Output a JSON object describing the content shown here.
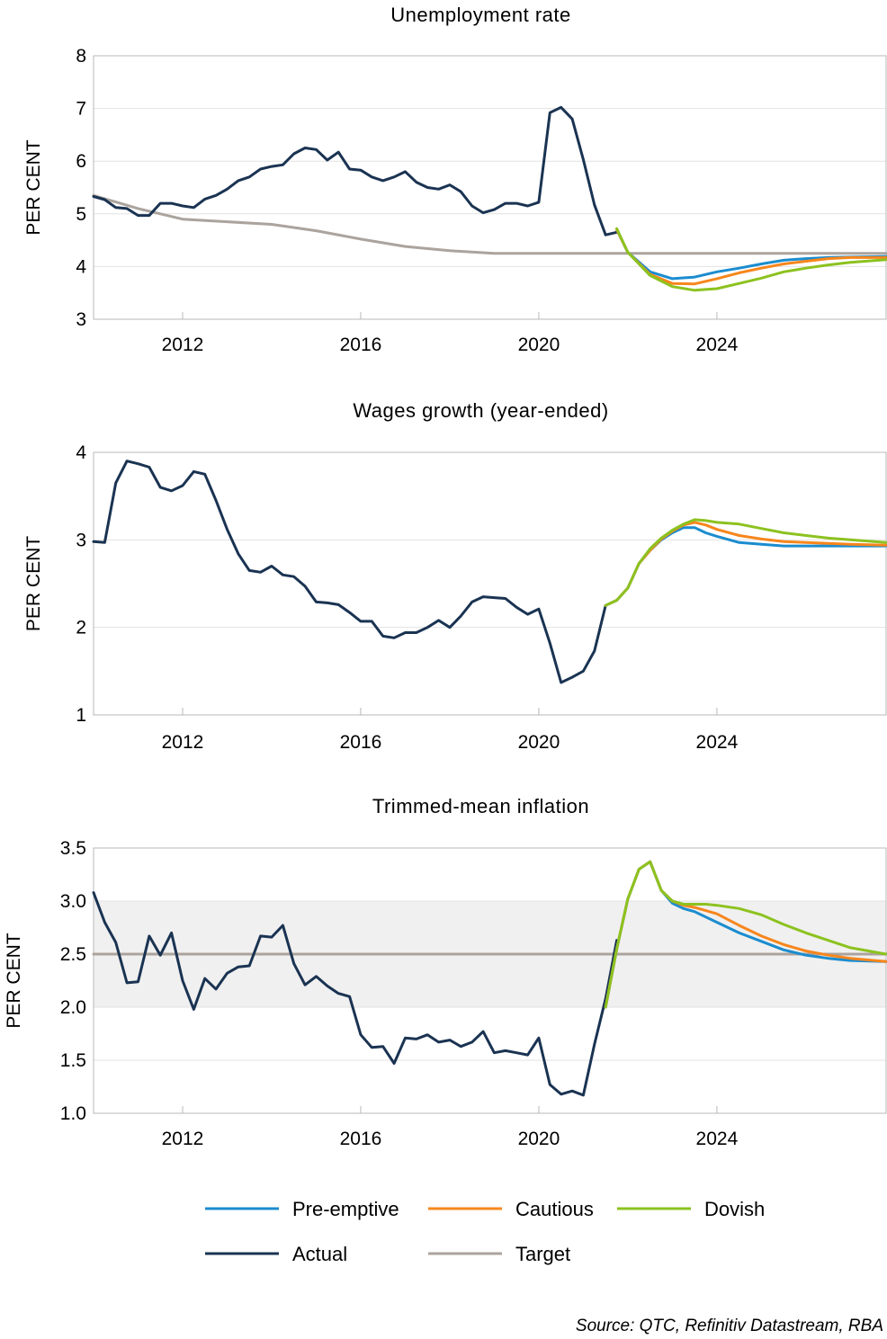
{
  "colors": {
    "pre_emptive": "#1b8ccf",
    "cautious": "#f7861c",
    "dovish": "#8cc21f",
    "actual": "#1a3352",
    "target": "#aba39d",
    "band": "#f0f0f0",
    "grid": "#e2e2e2",
    "frame": "#b8b8b8"
  },
  "legend": [
    {
      "key": "pre_emptive",
      "label": "Pre-emptive"
    },
    {
      "key": "cautious",
      "label": "Cautious"
    },
    {
      "key": "dovish",
      "label": "Dovish"
    },
    {
      "key": "actual",
      "label": "Actual"
    },
    {
      "key": "target",
      "label": "Target"
    }
  ],
  "source": "Source: QTC, Refinitiv Datastream, RBA",
  "chart_data": [
    {
      "type": "line",
      "title": "Unemployment rate",
      "ylabel": "PER CENT",
      "xlim": [
        2010,
        2027.8
      ],
      "ylim": [
        3,
        8
      ],
      "yticks": [
        "3",
        "4",
        "5",
        "6",
        "7",
        "8"
      ],
      "xticks": [
        "2012",
        "2016",
        "2020",
        "2024"
      ],
      "grid": true,
      "series": [
        {
          "key": "target",
          "name": "Target",
          "x": [
            2010,
            2011,
            2012,
            2013,
            2014,
            2015,
            2016,
            2017,
            2018,
            2019,
            2020,
            2027.8
          ],
          "y": [
            5.35,
            5.1,
            4.9,
            4.85,
            4.8,
            4.68,
            4.52,
            4.38,
            4.3,
            4.25,
            4.25,
            4.25
          ]
        },
        {
          "key": "actual",
          "name": "Actual",
          "x": [
            2010,
            2010.25,
            2010.5,
            2010.75,
            2011,
            2011.25,
            2011.5,
            2011.75,
            2012,
            2012.25,
            2012.5,
            2012.75,
            2013,
            2013.25,
            2013.5,
            2013.75,
            2014,
            2014.25,
            2014.5,
            2014.75,
            2015,
            2015.25,
            2015.5,
            2015.75,
            2016,
            2016.25,
            2016.5,
            2016.75,
            2017,
            2017.25,
            2017.5,
            2017.75,
            2018,
            2018.25,
            2018.5,
            2018.75,
            2019,
            2019.25,
            2019.5,
            2019.75,
            2020,
            2020.25,
            2020.5,
            2020.75,
            2021,
            2021.25,
            2021.5,
            2021.75
          ],
          "y": [
            5.33,
            5.27,
            5.12,
            5.1,
            4.97,
            4.97,
            5.2,
            5.2,
            5.15,
            5.12,
            5.28,
            5.35,
            5.47,
            5.63,
            5.7,
            5.85,
            5.9,
            5.93,
            6.14,
            6.25,
            6.22,
            6.02,
            6.17,
            5.85,
            5.83,
            5.7,
            5.63,
            5.7,
            5.8,
            5.6,
            5.5,
            5.47,
            5.55,
            5.42,
            5.15,
            5.02,
            5.08,
            5.2,
            5.2,
            5.15,
            5.22,
            6.92,
            7.02,
            6.8,
            6.03,
            5.17,
            4.6,
            4.65
          ]
        },
        {
          "key": "pre_emptive",
          "name": "Pre-emptive",
          "x": [
            2021.75,
            2022,
            2022.5,
            2023,
            2023.5,
            2024,
            2024.5,
            2025,
            2025.5,
            2026,
            2026.5,
            2027,
            2027.8
          ],
          "y": [
            4.7,
            4.27,
            3.9,
            3.77,
            3.8,
            3.9,
            3.97,
            4.05,
            4.12,
            4.15,
            4.17,
            4.18,
            4.19
          ]
        },
        {
          "key": "cautious",
          "name": "Cautious",
          "x": [
            2021.75,
            2022,
            2022.5,
            2023,
            2023.5,
            2024,
            2024.5,
            2025,
            2025.5,
            2026,
            2026.5,
            2027,
            2027.8
          ],
          "y": [
            4.7,
            4.27,
            3.85,
            3.68,
            3.67,
            3.77,
            3.88,
            3.97,
            4.05,
            4.1,
            4.15,
            4.17,
            4.17
          ]
        },
        {
          "key": "dovish",
          "name": "Dovish",
          "x": [
            2021.75,
            2022,
            2022.5,
            2023,
            2023.5,
            2024,
            2024.5,
            2025,
            2025.5,
            2026,
            2026.5,
            2027,
            2027.8
          ],
          "y": [
            4.72,
            4.27,
            3.83,
            3.62,
            3.55,
            3.58,
            3.68,
            3.78,
            3.9,
            3.97,
            4.03,
            4.08,
            4.13
          ]
        }
      ]
    },
    {
      "type": "line",
      "title": "Wages growth (year-ended)",
      "ylabel": "PER CENT",
      "xlim": [
        2010,
        2027.8
      ],
      "ylim": [
        1,
        4
      ],
      "yticks": [
        "1",
        "2",
        "3",
        "4"
      ],
      "xticks": [
        "2012",
        "2016",
        "2020",
        "2024"
      ],
      "grid": true,
      "series": [
        {
          "key": "actual",
          "name": "Actual",
          "x": [
            2010,
            2010.25,
            2010.5,
            2010.75,
            2011,
            2011.25,
            2011.5,
            2011.75,
            2012,
            2012.25,
            2012.5,
            2012.75,
            2013,
            2013.25,
            2013.5,
            2013.75,
            2014,
            2014.25,
            2014.5,
            2014.75,
            2015,
            2015.25,
            2015.5,
            2015.75,
            2016,
            2016.25,
            2016.5,
            2016.75,
            2017,
            2017.25,
            2017.5,
            2017.75,
            2018,
            2018.25,
            2018.5,
            2018.75,
            2019,
            2019.25,
            2019.5,
            2019.75,
            2020,
            2020.25,
            2020.5,
            2020.75,
            2021,
            2021.25,
            2021.5
          ],
          "y": [
            2.98,
            2.97,
            3.65,
            3.9,
            3.87,
            3.83,
            3.6,
            3.56,
            3.62,
            3.78,
            3.75,
            3.45,
            3.12,
            2.84,
            2.65,
            2.63,
            2.7,
            2.6,
            2.58,
            2.47,
            2.29,
            2.28,
            2.26,
            2.17,
            2.07,
            2.07,
            1.9,
            1.88,
            1.94,
            1.94,
            2.0,
            2.08,
            2.0,
            2.13,
            2.29,
            2.35,
            2.34,
            2.33,
            2.23,
            2.15,
            2.21,
            1.82,
            1.37,
            1.43,
            1.5,
            1.73,
            2.25
          ]
        },
        {
          "key": "pre_emptive",
          "name": "Pre-emptive",
          "x": [
            2021.5,
            2021.75,
            2022,
            2022.25,
            2022.5,
            2022.75,
            2023,
            2023.25,
            2023.5,
            2023.75,
            2024,
            2024.5,
            2025,
            2025.5,
            2026,
            2026.5,
            2027,
            2027.8
          ],
          "y": [
            2.25,
            2.31,
            2.45,
            2.73,
            2.88,
            3.0,
            3.08,
            3.14,
            3.14,
            3.08,
            3.04,
            2.97,
            2.95,
            2.93,
            2.93,
            2.93,
            2.93,
            2.93
          ]
        },
        {
          "key": "cautious",
          "name": "Cautious",
          "x": [
            2021.5,
            2021.75,
            2022,
            2022.25,
            2022.5,
            2022.75,
            2023,
            2023.25,
            2023.5,
            2023.75,
            2024,
            2024.5,
            2025,
            2025.5,
            2026,
            2026.5,
            2027,
            2027.8
          ],
          "y": [
            2.25,
            2.31,
            2.45,
            2.73,
            2.88,
            3.01,
            3.1,
            3.17,
            3.2,
            3.17,
            3.12,
            3.05,
            3.01,
            2.98,
            2.97,
            2.96,
            2.95,
            2.94
          ]
        },
        {
          "key": "dovish",
          "name": "Dovish",
          "x": [
            2021.5,
            2021.75,
            2022,
            2022.25,
            2022.5,
            2022.75,
            2023,
            2023.25,
            2023.5,
            2023.75,
            2024,
            2024.5,
            2025,
            2025.5,
            2026,
            2026.5,
            2027,
            2027.8
          ],
          "y": [
            2.25,
            2.31,
            2.45,
            2.73,
            2.9,
            3.02,
            3.11,
            3.18,
            3.23,
            3.22,
            3.2,
            3.18,
            3.13,
            3.08,
            3.05,
            3.02,
            3.0,
            2.97
          ]
        }
      ]
    },
    {
      "type": "line",
      "title": "Trimmed-mean inflation",
      "ylabel": "PER CENT",
      "xlim": [
        2010,
        2027.8
      ],
      "ylim": [
        1.0,
        3.5
      ],
      "yticks": [
        "1.0",
        "1.5",
        "2.0",
        "2.5",
        "3.0",
        "3.5"
      ],
      "xticks": [
        "2012",
        "2016",
        "2020",
        "2024"
      ],
      "grid": true,
      "target_band": [
        2.0,
        3.0
      ],
      "series": [
        {
          "key": "target",
          "name": "Target",
          "x": [
            2010,
            2027.8
          ],
          "y": [
            2.5,
            2.5
          ]
        },
        {
          "key": "actual",
          "name": "Actual",
          "x": [
            2010,
            2010.25,
            2010.5,
            2010.75,
            2011,
            2011.25,
            2011.5,
            2011.75,
            2012,
            2012.25,
            2012.5,
            2012.75,
            2013,
            2013.25,
            2013.5,
            2013.75,
            2014,
            2014.25,
            2014.5,
            2014.75,
            2015,
            2015.25,
            2015.5,
            2015.75,
            2016,
            2016.25,
            2016.5,
            2016.75,
            2017,
            2017.25,
            2017.5,
            2017.75,
            2018,
            2018.25,
            2018.5,
            2018.75,
            2019,
            2019.25,
            2019.5,
            2019.75,
            2020,
            2020.25,
            2020.5,
            2020.75,
            2021,
            2021.25,
            2021.5,
            2021.75
          ],
          "y": [
            3.08,
            2.8,
            2.61,
            2.23,
            2.24,
            2.67,
            2.49,
            2.7,
            2.25,
            1.98,
            2.27,
            2.17,
            2.32,
            2.38,
            2.39,
            2.67,
            2.66,
            2.77,
            2.41,
            2.21,
            2.29,
            2.2,
            2.13,
            2.1,
            1.74,
            1.62,
            1.63,
            1.47,
            1.71,
            1.7,
            1.74,
            1.67,
            1.69,
            1.63,
            1.67,
            1.77,
            1.57,
            1.59,
            1.57,
            1.55,
            1.71,
            1.27,
            1.18,
            1.21,
            1.17,
            1.65,
            2.08,
            2.63
          ]
        },
        {
          "key": "pre_emptive",
          "name": "Pre-emptive",
          "x": [
            2021.5,
            2021.75,
            2022,
            2022.25,
            2022.5,
            2022.75,
            2023,
            2023.25,
            2023.5,
            2023.75,
            2024,
            2024.5,
            2025,
            2025.5,
            2026,
            2026.5,
            2027,
            2027.8
          ],
          "y": [
            2.0,
            2.55,
            3.02,
            3.3,
            3.37,
            3.1,
            2.98,
            2.93,
            2.9,
            2.85,
            2.8,
            2.7,
            2.62,
            2.54,
            2.49,
            2.46,
            2.44,
            2.43
          ]
        },
        {
          "key": "cautious",
          "name": "Cautious",
          "x": [
            2021.5,
            2021.75,
            2022,
            2022.25,
            2022.5,
            2022.75,
            2023,
            2023.25,
            2023.5,
            2023.75,
            2024,
            2024.5,
            2025,
            2025.5,
            2026,
            2026.5,
            2027,
            2027.8
          ],
          "y": [
            2.0,
            2.55,
            3.02,
            3.3,
            3.37,
            3.1,
            3.0,
            2.96,
            2.94,
            2.91,
            2.88,
            2.77,
            2.67,
            2.59,
            2.53,
            2.49,
            2.46,
            2.43
          ]
        },
        {
          "key": "dovish",
          "name": "Dovish",
          "x": [
            2021.5,
            2021.75,
            2022,
            2022.25,
            2022.5,
            2022.75,
            2023,
            2023.25,
            2023.5,
            2023.75,
            2024,
            2024.5,
            2025,
            2025.5,
            2026,
            2026.5,
            2027,
            2027.8
          ],
          "y": [
            2.0,
            2.55,
            3.02,
            3.3,
            3.37,
            3.1,
            3.0,
            2.97,
            2.97,
            2.97,
            2.96,
            2.93,
            2.87,
            2.78,
            2.7,
            2.63,
            2.56,
            2.5
          ]
        }
      ]
    }
  ]
}
